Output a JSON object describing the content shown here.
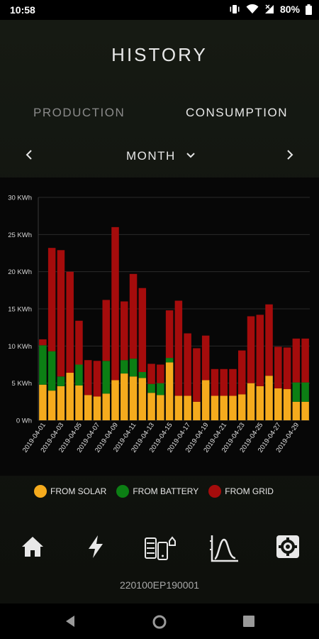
{
  "status_bar": {
    "time": "10:58",
    "battery": "80%"
  },
  "header": {
    "title": "HISTORY"
  },
  "tabs": [
    {
      "label": "PRODUCTION",
      "selected": false
    },
    {
      "label": "CONSUMPTION",
      "selected": true
    }
  ],
  "period": {
    "label": "MONTH"
  },
  "icons": {
    "prev": "chevron-left-icon",
    "next": "chevron-right-icon",
    "dropdown": "chevron-down-icon",
    "nav": [
      "home-icon",
      "lightning-icon",
      "devices-icon",
      "chart-icon",
      "settings-icon"
    ]
  },
  "colors": {
    "solar": "#f5ab1d",
    "battery": "#0c7f14",
    "grid": "#a50c0c"
  },
  "chart_data": {
    "type": "bar",
    "stacked": true,
    "y_ticks": [
      "0 Wh",
      "5 KWh",
      "10 KWh",
      "15 KWh",
      "20 KWh",
      "25 KWh",
      "30 KWh"
    ],
    "ylim": [
      0,
      30
    ],
    "categories": [
      "2019-04-01",
      "2019-04-02",
      "2019-04-03",
      "2019-04-04",
      "2019-04-05",
      "2019-04-06",
      "2019-04-07",
      "2019-04-08",
      "2019-04-09",
      "2019-04-10",
      "2019-04-11",
      "2019-04-12",
      "2019-04-13",
      "2019-04-14",
      "2019-04-15",
      "2019-04-16",
      "2019-04-17",
      "2019-04-18",
      "2019-04-19",
      "2019-04-20",
      "2019-04-21",
      "2019-04-22",
      "2019-04-23",
      "2019-04-24",
      "2019-04-25",
      "2019-04-26",
      "2019-04-27",
      "2019-04-28",
      "2019-04-29",
      "2019-04-30"
    ],
    "x_tick_labels": [
      "2019-04-01",
      "2019-04-03",
      "2019-04-05",
      "2019-04-07",
      "2019-04-09",
      "2019-04-11",
      "2019-04-13",
      "2019-04-15",
      "2019-04-17",
      "2019-04-19",
      "2019-04-21",
      "2019-04-23",
      "2019-04-25",
      "2019-04-27",
      "2019-04-29"
    ],
    "series": [
      {
        "name": "FROM SOLAR",
        "values": [
          4.8,
          4.0,
          4.6,
          6.4,
          4.7,
          3.4,
          3.2,
          3.6,
          5.4,
          6.3,
          5.9,
          5.7,
          3.7,
          3.4,
          7.8,
          3.3,
          3.3,
          2.5,
          5.4,
          3.3,
          3.3,
          3.3,
          3.5,
          5.0,
          4.6,
          6.0,
          4.3,
          4.2,
          2.5,
          2.5
        ]
      },
      {
        "name": "FROM BATTERY",
        "values": [
          5.3,
          5.3,
          1.3,
          0,
          2.8,
          0,
          0,
          4.4,
          0,
          1.8,
          2.4,
          0.8,
          1.2,
          1.6,
          0.6,
          0,
          0,
          0,
          0,
          0,
          0,
          0,
          0,
          0,
          0,
          0,
          0,
          0,
          2.6,
          2.6
        ]
      },
      {
        "name": "FROM GRID",
        "values": [
          0.8,
          13.9,
          17.0,
          13.6,
          5.9,
          4.7,
          4.8,
          8.2,
          20.6,
          7.9,
          11.4,
          11.3,
          2.7,
          2.5,
          6.4,
          12.8,
          8.4,
          7.2,
          6.0,
          3.6,
          3.6,
          3.6,
          5.9,
          9.0,
          9.6,
          9.6,
          5.6,
          5.6,
          5.9,
          5.9
        ]
      }
    ]
  },
  "legend": [
    {
      "label": "FROM SOLAR",
      "color": "#f5ab1d"
    },
    {
      "label": "FROM BATTERY",
      "color": "#0c7f14"
    },
    {
      "label": "FROM GRID",
      "color": "#a50c0c"
    }
  ],
  "footer": {
    "serial": "220100EP190001"
  }
}
